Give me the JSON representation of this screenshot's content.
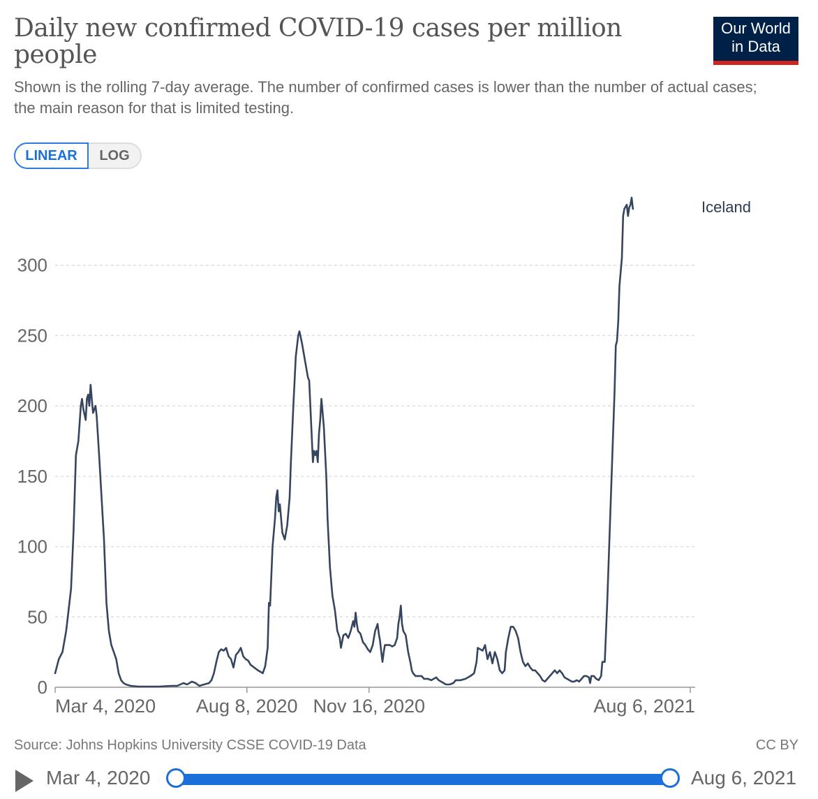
{
  "header": {
    "title": "Daily new confirmed COVID-19 cases per million people",
    "subtitle": "Shown is the rolling 7-day average. The number of confirmed cases is lower than the number of actual cases; the main reason for that is limited testing."
  },
  "logo": {
    "line1": "Our World",
    "line2": "in Data",
    "bg_color": "#002147",
    "accent_color": "#ce261e"
  },
  "scale_toggle": {
    "linear_label": "LINEAR",
    "log_label": "LOG",
    "selected": "LINEAR"
  },
  "chart_data": {
    "type": "line",
    "title": "Daily new confirmed COVID-19 cases per million people",
    "xlabel": "",
    "ylabel": "",
    "ylim": [
      0,
      350
    ],
    "yticks": [
      0,
      50,
      100,
      150,
      200,
      250,
      300
    ],
    "xlim": [
      0,
      524
    ],
    "xticks": [
      {
        "day": 0,
        "label": "Mar 4, 2020"
      },
      {
        "day": 157,
        "label": "Aug 8, 2020"
      },
      {
        "day": 257,
        "label": "Nov 16, 2020"
      },
      {
        "day": 520,
        "label": "Aug 6, 2021"
      }
    ],
    "grid": true,
    "series": [
      {
        "name": "Iceland",
        "color": "#36455f",
        "points": [
          [
            0,
            10
          ],
          [
            3,
            20
          ],
          [
            6,
            25
          ],
          [
            9,
            40
          ],
          [
            11,
            55
          ],
          [
            13,
            70
          ],
          [
            15,
            110
          ],
          [
            17,
            165
          ],
          [
            19,
            175
          ],
          [
            21,
            200
          ],
          [
            22,
            205
          ],
          [
            23,
            198
          ],
          [
            25,
            190
          ],
          [
            26,
            205
          ],
          [
            27,
            208
          ],
          [
            28,
            200
          ],
          [
            29,
            215
          ],
          [
            30,
            205
          ],
          [
            31,
            195
          ],
          [
            33,
            200
          ],
          [
            34,
            193
          ],
          [
            36,
            165
          ],
          [
            38,
            135
          ],
          [
            40,
            105
          ],
          [
            42,
            60
          ],
          [
            44,
            40
          ],
          [
            46,
            30
          ],
          [
            48,
            25
          ],
          [
            50,
            20
          ],
          [
            52,
            10
          ],
          [
            54,
            5
          ],
          [
            56,
            3
          ],
          [
            58,
            2
          ],
          [
            62,
            1
          ],
          [
            68,
            0.5
          ],
          [
            75,
            0.5
          ],
          [
            85,
            0.5
          ],
          [
            95,
            1
          ],
          [
            100,
            1
          ],
          [
            105,
            3
          ],
          [
            108,
            2
          ],
          [
            112,
            4
          ],
          [
            115,
            3
          ],
          [
            118,
            1
          ],
          [
            122,
            2
          ],
          [
            126,
            3
          ],
          [
            128,
            5
          ],
          [
            130,
            10
          ],
          [
            132,
            18
          ],
          [
            134,
            25
          ],
          [
            136,
            27
          ],
          [
            138,
            26
          ],
          [
            140,
            28
          ],
          [
            142,
            22
          ],
          [
            144,
            20
          ],
          [
            146,
            14
          ],
          [
            148,
            23
          ],
          [
            150,
            25
          ],
          [
            152,
            28
          ],
          [
            154,
            22
          ],
          [
            156,
            20
          ],
          [
            158,
            19
          ],
          [
            160,
            16
          ],
          [
            163,
            14
          ],
          [
            166,
            12
          ],
          [
            168,
            11
          ],
          [
            170,
            10
          ],
          [
            172,
            15
          ],
          [
            174,
            28
          ],
          [
            175,
            60
          ],
          [
            176,
            58
          ],
          [
            178,
            100
          ],
          [
            180,
            120
          ],
          [
            181,
            135
          ],
          [
            182,
            140
          ],
          [
            183,
            125
          ],
          [
            184,
            130
          ],
          [
            186,
            110
          ],
          [
            188,
            105
          ],
          [
            190,
            115
          ],
          [
            192,
            135
          ],
          [
            193,
            160
          ],
          [
            195,
            200
          ],
          [
            197,
            235
          ],
          [
            199,
            250
          ],
          [
            200,
            253
          ],
          [
            202,
            245
          ],
          [
            204,
            235
          ],
          [
            206,
            225
          ],
          [
            207,
            220
          ],
          [
            208,
            218
          ],
          [
            210,
            180
          ],
          [
            211,
            160
          ],
          [
            212,
            168
          ],
          [
            213,
            165
          ],
          [
            214,
            168
          ],
          [
            215,
            160
          ],
          [
            216,
            180
          ],
          [
            217,
            190
          ],
          [
            218,
            205
          ],
          [
            219,
            195
          ],
          [
            220,
            185
          ],
          [
            222,
            150
          ],
          [
            223,
            120
          ],
          [
            225,
            85
          ],
          [
            227,
            65
          ],
          [
            229,
            55
          ],
          [
            231,
            40
          ],
          [
            233,
            35
          ],
          [
            234,
            28
          ],
          [
            236,
            37
          ],
          [
            238,
            38
          ],
          [
            240,
            35
          ],
          [
            242,
            40
          ],
          [
            244,
            47
          ],
          [
            245,
            43
          ],
          [
            246,
            53
          ],
          [
            247,
            45
          ],
          [
            248,
            40
          ],
          [
            250,
            38
          ],
          [
            252,
            32
          ],
          [
            254,
            30
          ],
          [
            256,
            27
          ],
          [
            258,
            25
          ],
          [
            260,
            30
          ],
          [
            262,
            40
          ],
          [
            264,
            45
          ],
          [
            265,
            38
          ],
          [
            266,
            33
          ],
          [
            267,
            25
          ],
          [
            268,
            18
          ],
          [
            269,
            25
          ],
          [
            270,
            30
          ],
          [
            272,
            30
          ],
          [
            274,
            30
          ],
          [
            276,
            29
          ],
          [
            278,
            30
          ],
          [
            280,
            35
          ],
          [
            281,
            45
          ],
          [
            282,
            50
          ],
          [
            283,
            58
          ],
          [
            284,
            45
          ],
          [
            285,
            40
          ],
          [
            287,
            37
          ],
          [
            289,
            25
          ],
          [
            291,
            17
          ],
          [
            292,
            12
          ],
          [
            293,
            10
          ],
          [
            295,
            8
          ],
          [
            298,
            8
          ],
          [
            300,
            8
          ],
          [
            302,
            6
          ],
          [
            305,
            6
          ],
          [
            308,
            5
          ],
          [
            310,
            6
          ],
          [
            312,
            7
          ],
          [
            314,
            5
          ],
          [
            316,
            4
          ],
          [
            318,
            3
          ],
          [
            320,
            2
          ],
          [
            323,
            2
          ],
          [
            326,
            3
          ],
          [
            328,
            5
          ],
          [
            332,
            5
          ],
          [
            336,
            6
          ],
          [
            340,
            8
          ],
          [
            343,
            10
          ],
          [
            345,
            18
          ],
          [
            346,
            28
          ],
          [
            348,
            27
          ],
          [
            350,
            26
          ],
          [
            352,
            30
          ],
          [
            354,
            20
          ],
          [
            356,
            25
          ],
          [
            358,
            17
          ],
          [
            360,
            25
          ],
          [
            362,
            20
          ],
          [
            364,
            12
          ],
          [
            366,
            10
          ],
          [
            368,
            12
          ],
          [
            369,
            25
          ],
          [
            371,
            35
          ],
          [
            373,
            43
          ],
          [
            375,
            43
          ],
          [
            377,
            40
          ],
          [
            379,
            35
          ],
          [
            381,
            25
          ],
          [
            383,
            18
          ],
          [
            385,
            15
          ],
          [
            387,
            17
          ],
          [
            389,
            14
          ],
          [
            391,
            12
          ],
          [
            393,
            12
          ],
          [
            395,
            10
          ],
          [
            397,
            8
          ],
          [
            399,
            5
          ],
          [
            401,
            4
          ],
          [
            403,
            6
          ],
          [
            405,
            8
          ],
          [
            407,
            10
          ],
          [
            409,
            12
          ],
          [
            411,
            10
          ],
          [
            413,
            12
          ],
          [
            415,
            10
          ],
          [
            417,
            7
          ],
          [
            419,
            6
          ],
          [
            421,
            5
          ],
          [
            423,
            4
          ],
          [
            425,
            4
          ],
          [
            427,
            5
          ],
          [
            429,
            4
          ],
          [
            431,
            6
          ],
          [
            433,
            8
          ],
          [
            435,
            8
          ],
          [
            437,
            7
          ],
          [
            438,
            3
          ],
          [
            439,
            8
          ],
          [
            441,
            8
          ],
          [
            443,
            6
          ],
          [
            445,
            5
          ],
          [
            447,
            8
          ],
          [
            448,
            18
          ],
          [
            450,
            18
          ],
          [
            452,
            60
          ],
          [
            454,
            110
          ],
          [
            456,
            160
          ],
          [
            458,
            210
          ],
          [
            459,
            243
          ],
          [
            460,
            246
          ],
          [
            461,
            260
          ],
          [
            462,
            285
          ],
          [
            464,
            305
          ],
          [
            465,
            335
          ],
          [
            466,
            340
          ],
          [
            468,
            343
          ],
          [
            469,
            335
          ],
          [
            470,
            341
          ],
          [
            471,
            343
          ],
          [
            472,
            348
          ],
          [
            473,
            340
          ]
        ]
      }
    ]
  },
  "footer": {
    "source": "Source: Johns Hopkins University CSSE COVID-19 Data",
    "license": "CC BY"
  },
  "timeline": {
    "start_label": "Mar 4, 2020",
    "end_label": "Aug 6, 2021",
    "range_start_fraction": 0,
    "range_end_fraction": 1
  }
}
